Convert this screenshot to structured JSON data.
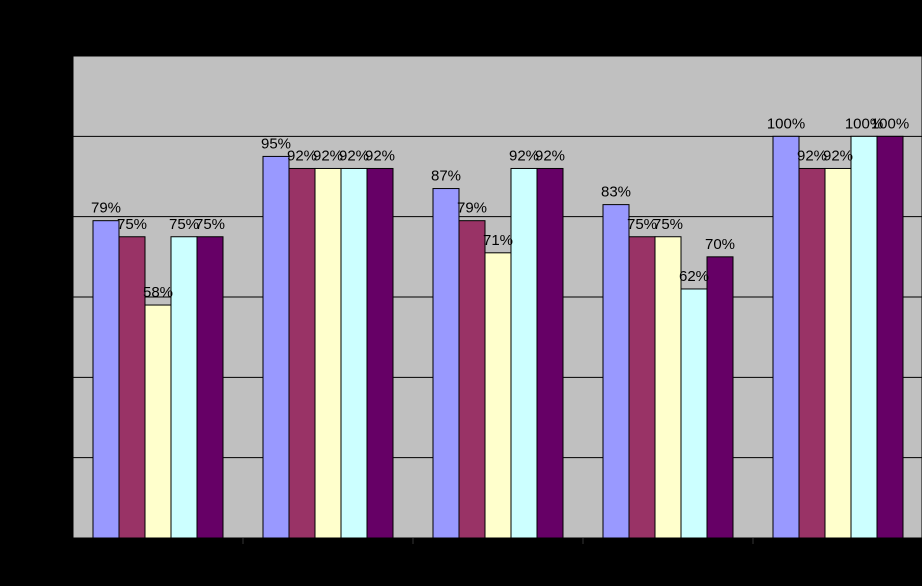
{
  "chart_data": {
    "type": "bar",
    "title": "",
    "xlabel": "",
    "ylabel": "",
    "categories": [
      "",
      "",
      "",
      "",
      ""
    ],
    "ylim": [
      0,
      120
    ],
    "grid": true,
    "series": [
      {
        "color": "#9999FF",
        "values": [
          79,
          95,
          87,
          83,
          100
        ],
        "labels": [
          "79%",
          "95%",
          "87%",
          "83%",
          "100%"
        ]
      },
      {
        "color": "#993366",
        "values": [
          75,
          92,
          79,
          75,
          92
        ],
        "labels": [
          "75%",
          "92%",
          "79%",
          "75%",
          "92%"
        ]
      },
      {
        "color": "#FFFFCC",
        "values": [
          58,
          92,
          71,
          75,
          92
        ],
        "labels": [
          "58%",
          "92%",
          "71%",
          "75%",
          "92%"
        ]
      },
      {
        "color": "#CCFFFF",
        "values": [
          75,
          92,
          92,
          62,
          100
        ],
        "labels": [
          "75%",
          "92%",
          "92%",
          "62%",
          "100%"
        ]
      },
      {
        "color": "#660066",
        "values": [
          75,
          92,
          92,
          70,
          100
        ],
        "labels": [
          "75%",
          "92%",
          "92%",
          "70%",
          "100%"
        ]
      }
    ]
  },
  "colors": {
    "page_background": "#000000",
    "plot_background": "#C0C0C0",
    "gridline": "#000000",
    "bar_outline": "#000000",
    "label_text": "#000000"
  }
}
